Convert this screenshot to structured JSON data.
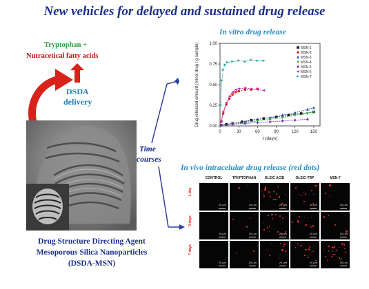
{
  "title": "New vehicles for delayed and sustained drug release",
  "left": {
    "tryptophan_label": "Tryptophan +",
    "fatty_acids_label": "Nutracetical fatty acids",
    "dsda_line1": "DSDA",
    "dsda_line2": "delivery",
    "caption_line1": "Drug Structure  Directing Agent",
    "caption_line2": "Mesoporous Silica  Nanoparticles",
    "caption_line3": "(DSDA-MSN)"
  },
  "middle": {
    "time_line1": "Time",
    "time_line2": "courses"
  },
  "vitro_title": "In vitro drug release",
  "vivo_title": "In vivo intracelular drug release (red dots)",
  "chart_data": {
    "type": "scatter",
    "xlabel": "t (days)",
    "ylabel": "Drug released amount (mmol drug / g sample)",
    "xlim": [
      0,
      160
    ],
    "ylim": [
      0,
      1.0
    ],
    "xticks": [
      0,
      30,
      60,
      90,
      120,
      150
    ],
    "yticks": [
      0.0,
      0.25,
      0.5,
      0.75,
      1.0
    ],
    "tick_labels_x": [
      "0",
      "30",
      "60",
      "90",
      "120",
      "150"
    ],
    "tick_labels_y": [
      "0.00",
      "0.25",
      "0.50",
      "0.75",
      "1.00"
    ],
    "legend_position": "top-right",
    "series": [
      {
        "name": "MSN-1",
        "color": "#1a1a1a",
        "marker": "square",
        "x": [
          2,
          10,
          20,
          35,
          50,
          70,
          90,
          110,
          130,
          150
        ],
        "y": [
          0.01,
          0.02,
          0.03,
          0.05,
          0.07,
          0.09,
          0.11,
          0.13,
          0.15,
          0.17
        ]
      },
      {
        "name": "MSN-2",
        "color": "#d8232a",
        "marker": "circle",
        "x": [
          2,
          5,
          10,
          15,
          20,
          25,
          30,
          40,
          50,
          60
        ],
        "y": [
          0.05,
          0.15,
          0.26,
          0.33,
          0.38,
          0.41,
          0.42,
          0.44,
          0.44,
          0.45
        ]
      },
      {
        "name": "MSN-3",
        "color": "#1f3fb8",
        "marker": "triangle",
        "x": [
          2,
          20,
          40,
          60,
          80,
          100,
          120,
          140,
          150
        ],
        "y": [
          0.01,
          0.03,
          0.05,
          0.08,
          0.1,
          0.13,
          0.16,
          0.2,
          0.22
        ]
      },
      {
        "name": "MSN-4",
        "color": "#2aa835",
        "marker": "triangle-down",
        "x": [
          2,
          20,
          40,
          60,
          80,
          100,
          120,
          140,
          150
        ],
        "y": [
          0.01,
          0.02,
          0.04,
          0.06,
          0.08,
          0.1,
          0.13,
          0.15,
          0.17
        ]
      },
      {
        "name": "MSN-5",
        "color": "#7a2ab8",
        "marker": "diamond",
        "x": [
          2,
          20,
          40,
          60,
          80,
          100,
          120,
          140
        ],
        "y": [
          0.01,
          0.02,
          0.03,
          0.04,
          0.05,
          0.06,
          0.07,
          0.08
        ]
      },
      {
        "name": "MSN-6",
        "color": "#c12bb0",
        "marker": "triangle-left",
        "x": [
          2,
          5,
          10,
          15,
          20,
          25,
          30,
          40,
          50,
          60,
          70
        ],
        "y": [
          0.06,
          0.17,
          0.28,
          0.36,
          0.41,
          0.44,
          0.45,
          0.46,
          0.45,
          0.44,
          0.43
        ]
      },
      {
        "name": "MSN-7",
        "color": "#2aa8a0",
        "marker": "triangle-right",
        "x": [
          1,
          3,
          5,
          8,
          12,
          20,
          30,
          40,
          50,
          60,
          70
        ],
        "y": [
          0.25,
          0.55,
          0.68,
          0.74,
          0.77,
          0.78,
          0.79,
          0.78,
          0.8,
          0.79,
          0.79
        ]
      }
    ]
  },
  "vivo_grid": {
    "columns": [
      "CONTROL",
      "TRYPTOPHAN",
      "OLEIC ACID",
      "OLEIC-TRP",
      "MSN-7"
    ],
    "rows": [
      "1 day",
      "3 days",
      "7 days"
    ],
    "scale_label": "20 µm",
    "red_dot_density": [
      [
        0,
        1,
        10,
        6,
        2
      ],
      [
        0,
        2,
        8,
        5,
        4
      ],
      [
        0,
        2,
        6,
        8,
        10
      ]
    ]
  },
  "colors": {
    "title": "#1b2f8a",
    "accent_blue": "#2a8fc4",
    "arrow_red": "#d8231a",
    "arrow_blue": "#2c3f9b"
  }
}
